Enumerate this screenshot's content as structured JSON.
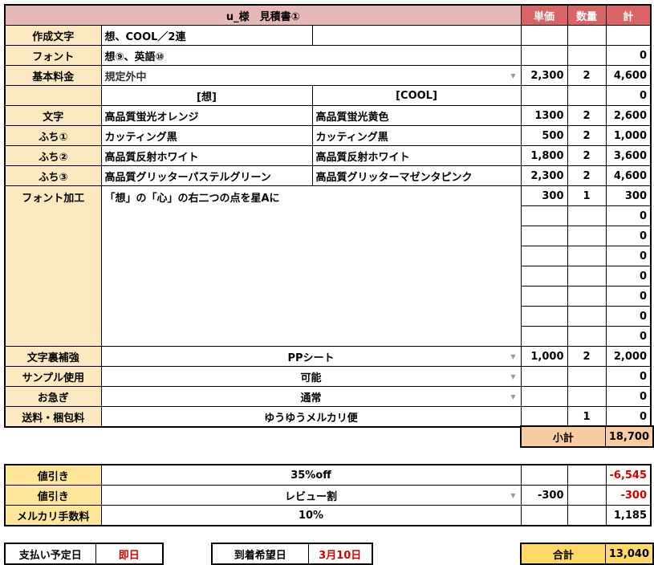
{
  "header": {
    "title": "u_様　見積書①",
    "col_price": "単価",
    "col_qty": "数量",
    "col_total": "計"
  },
  "rows": [
    {
      "label": "作成文字",
      "a": "想、COOL／2連",
      "b": "",
      "split": true,
      "price": "",
      "qty": "",
      "total": ""
    },
    {
      "label": "フォント",
      "a": "想⑨、英語⑩",
      "merged": true,
      "price": "",
      "qty": "",
      "total": "0"
    },
    {
      "label": "基本料金",
      "a": "規定外中",
      "merged": true,
      "dropdown": true,
      "left": true,
      "price": "2,300",
      "qty": "2",
      "total": "4,600"
    },
    {
      "label": "",
      "a": "[想]",
      "b": "[COOL]",
      "split": true,
      "center": true,
      "price": "",
      "qty": "",
      "total": "0"
    },
    {
      "label": "文字",
      "a": "高品質蛍光オレンジ",
      "b": "高品質蛍光黄色",
      "split": true,
      "price": "1300",
      "qty": "2",
      "total": "2,600"
    },
    {
      "label": "ふち①",
      "a": "カッティング黒",
      "b": "カッティング黒",
      "split": true,
      "price": "500",
      "qty": "2",
      "total": "1,000"
    },
    {
      "label": "ふち②",
      "a": "高品質反射ホワイト",
      "b": "高品質反射ホワイト",
      "split": true,
      "price": "1,800",
      "qty": "2",
      "total": "3,600"
    },
    {
      "label": "ふち③",
      "a": "高品質グリッターパステルグリーン",
      "b": "高品質グリッターマゼンタピンク",
      "split": true,
      "price": "2,300",
      "qty": "2",
      "total": "4,600"
    }
  ],
  "font_processing": {
    "label": "フォント加工",
    "text": "「想」の「心」の右二つの点を星Aに",
    "lines": [
      {
        "price": "300",
        "qty": "1",
        "total": "300"
      },
      {
        "price": "",
        "qty": "",
        "total": "0"
      },
      {
        "price": "",
        "qty": "",
        "total": "0"
      },
      {
        "price": "",
        "qty": "",
        "total": "0"
      },
      {
        "price": "",
        "qty": "",
        "total": "0"
      },
      {
        "price": "",
        "qty": "",
        "total": "0"
      },
      {
        "price": "",
        "qty": "",
        "total": "0"
      },
      {
        "price": "",
        "qty": "",
        "total": "0"
      }
    ]
  },
  "rows2": [
    {
      "label": "文字裏補強",
      "a": "PPシート",
      "merged": true,
      "center": true,
      "dropdown": true,
      "price": "1,000",
      "qty": "2",
      "total": "2,000"
    },
    {
      "label": "サンプル使用",
      "a": "可能",
      "merged": true,
      "center": true,
      "dropdown": true,
      "price": "",
      "qty": "",
      "total": "0"
    },
    {
      "label": "お急ぎ",
      "a": "通常",
      "merged": true,
      "center": true,
      "dropdown": true,
      "price": "",
      "qty": "",
      "total": "0"
    },
    {
      "label": "送料・梱包料",
      "a": "ゆうゆうメルカリ便",
      "merged": true,
      "center": true,
      "price": "",
      "qty": "1",
      "total": "0"
    }
  ],
  "subtotal": {
    "label": "小計",
    "value": "18,700"
  },
  "discounts": [
    {
      "label": "値引き",
      "a": "35%off",
      "price": "",
      "total": "-6,545",
      "red": true
    },
    {
      "label": "値引き",
      "a": "レビュー割",
      "dropdown": true,
      "price": "-300",
      "total": "-300",
      "red": true
    },
    {
      "label": "メルカリ手数料",
      "a": "10%",
      "price": "",
      "total": "1,185"
    }
  ],
  "payment": {
    "label": "支払い予定日",
    "value": "即日"
  },
  "arrival": {
    "label": "到着希望日",
    "value": "3月10日"
  },
  "grand_total": {
    "label": "合計",
    "value": "13,040"
  },
  "colors": {
    "header": "#e6b8b7",
    "header_accent": "#da6464",
    "label_bg": "#fde9c0",
    "discount_bg": "#ffe699",
    "total_bg": "#ffd966",
    "negative": "#d00000"
  }
}
